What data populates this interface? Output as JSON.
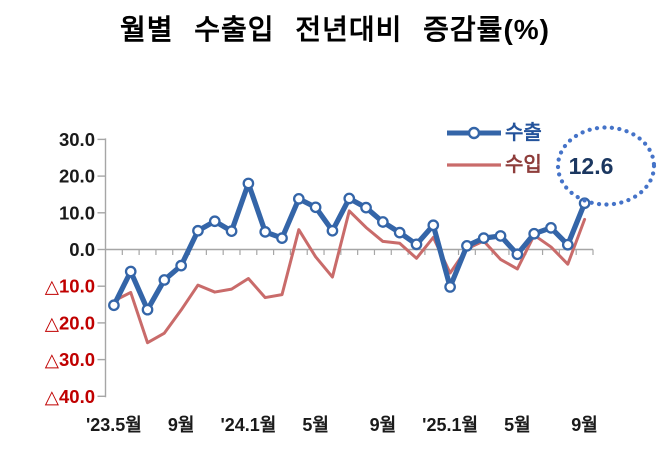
{
  "title": "월별 수출입 전년대비 증감률(%)",
  "legend": {
    "export_label": "수출",
    "import_label": "수입"
  },
  "annotation": {
    "value": "12.6"
  },
  "colors": {
    "export_line": "#3465A8",
    "import_line": "#C96B6A",
    "axis": "#A6A6A6",
    "ylabel_positive": "#1A1A1A",
    "ylabel_negative": "#C00000",
    "xlabel": "#1A1A1A",
    "title": "#000000",
    "legend_export_text": "#24539B",
    "legend_import_text": "#8E3D3B",
    "annotation_ring": "#4573C8",
    "annotation_text": "#1B3760",
    "marker_fill": "#FFFFFF"
  },
  "chart_data": {
    "type": "line",
    "title": "월별 수출입 전년대비 증감률(%)",
    "xlabel": "",
    "ylabel": "",
    "ylim": [
      -40,
      30
    ],
    "ytick_step": 10,
    "grid": "zero-line-only",
    "legend_position": "top-right",
    "negative_label_prefix": "△",
    "y_axis": {
      "tick_values": [
        30,
        20,
        10,
        0,
        -10,
        -20,
        -30,
        -40
      ],
      "tick_labels": [
        "30.0",
        "20.0",
        "10.0",
        "0.0",
        "△10.0",
        "△20.0",
        "△30.0",
        "△40.0"
      ]
    },
    "x_axis": {
      "label_indices": [
        0,
        4,
        8,
        12,
        16,
        20,
        24,
        28
      ],
      "labels": [
        "'23.5월",
        "9월",
        "'24.1월",
        "5월",
        "9월",
        "'25.1월",
        "5월",
        "9월"
      ]
    },
    "categories": [
      "'23.5월",
      "'23.6월",
      "'23.7월",
      "'23.8월",
      "'23.9월",
      "'23.10월",
      "'23.11월",
      "'23.12월",
      "'24.1월",
      "'24.2월",
      "'24.3월",
      "'24.4월",
      "'24.5월",
      "'24.6월",
      "'24.7월",
      "'24.8월",
      "'24.9월",
      "'24.10월",
      "'24.11월",
      "'24.12월",
      "'25.1월",
      "'25.2월",
      "'25.3월",
      "'25.4월",
      "'25.5월",
      "'25.6월",
      "'25.7월",
      "'25.8월",
      "'25.9월"
    ],
    "series": [
      {
        "name": "수출",
        "marker": "circle",
        "values": [
          -15.2,
          -6.0,
          -16.4,
          -8.3,
          -4.4,
          5.1,
          7.7,
          5.0,
          18.0,
          4.8,
          3.1,
          13.8,
          11.5,
          5.1,
          13.9,
          11.4,
          7.5,
          4.6,
          1.4,
          6.6,
          -10.2,
          1.0,
          3.1,
          3.7,
          -1.3,
          4.3,
          5.9,
          1.3,
          12.6
        ]
      },
      {
        "name": "수입",
        "marker": "none",
        "values": [
          -14.0,
          -11.7,
          -25.4,
          -22.8,
          -16.5,
          -9.7,
          -11.6,
          -10.8,
          -7.9,
          -13.1,
          -12.3,
          5.4,
          -2.0,
          -7.5,
          10.5,
          6.0,
          2.2,
          1.7,
          -2.4,
          3.3,
          -6.4,
          0.2,
          2.3,
          -2.7,
          -5.3,
          3.9,
          0.7,
          -4.0,
          8.2
        ]
      }
    ],
    "annotation": {
      "text": "12.6",
      "series": "수출",
      "category": "'25.9월"
    }
  }
}
